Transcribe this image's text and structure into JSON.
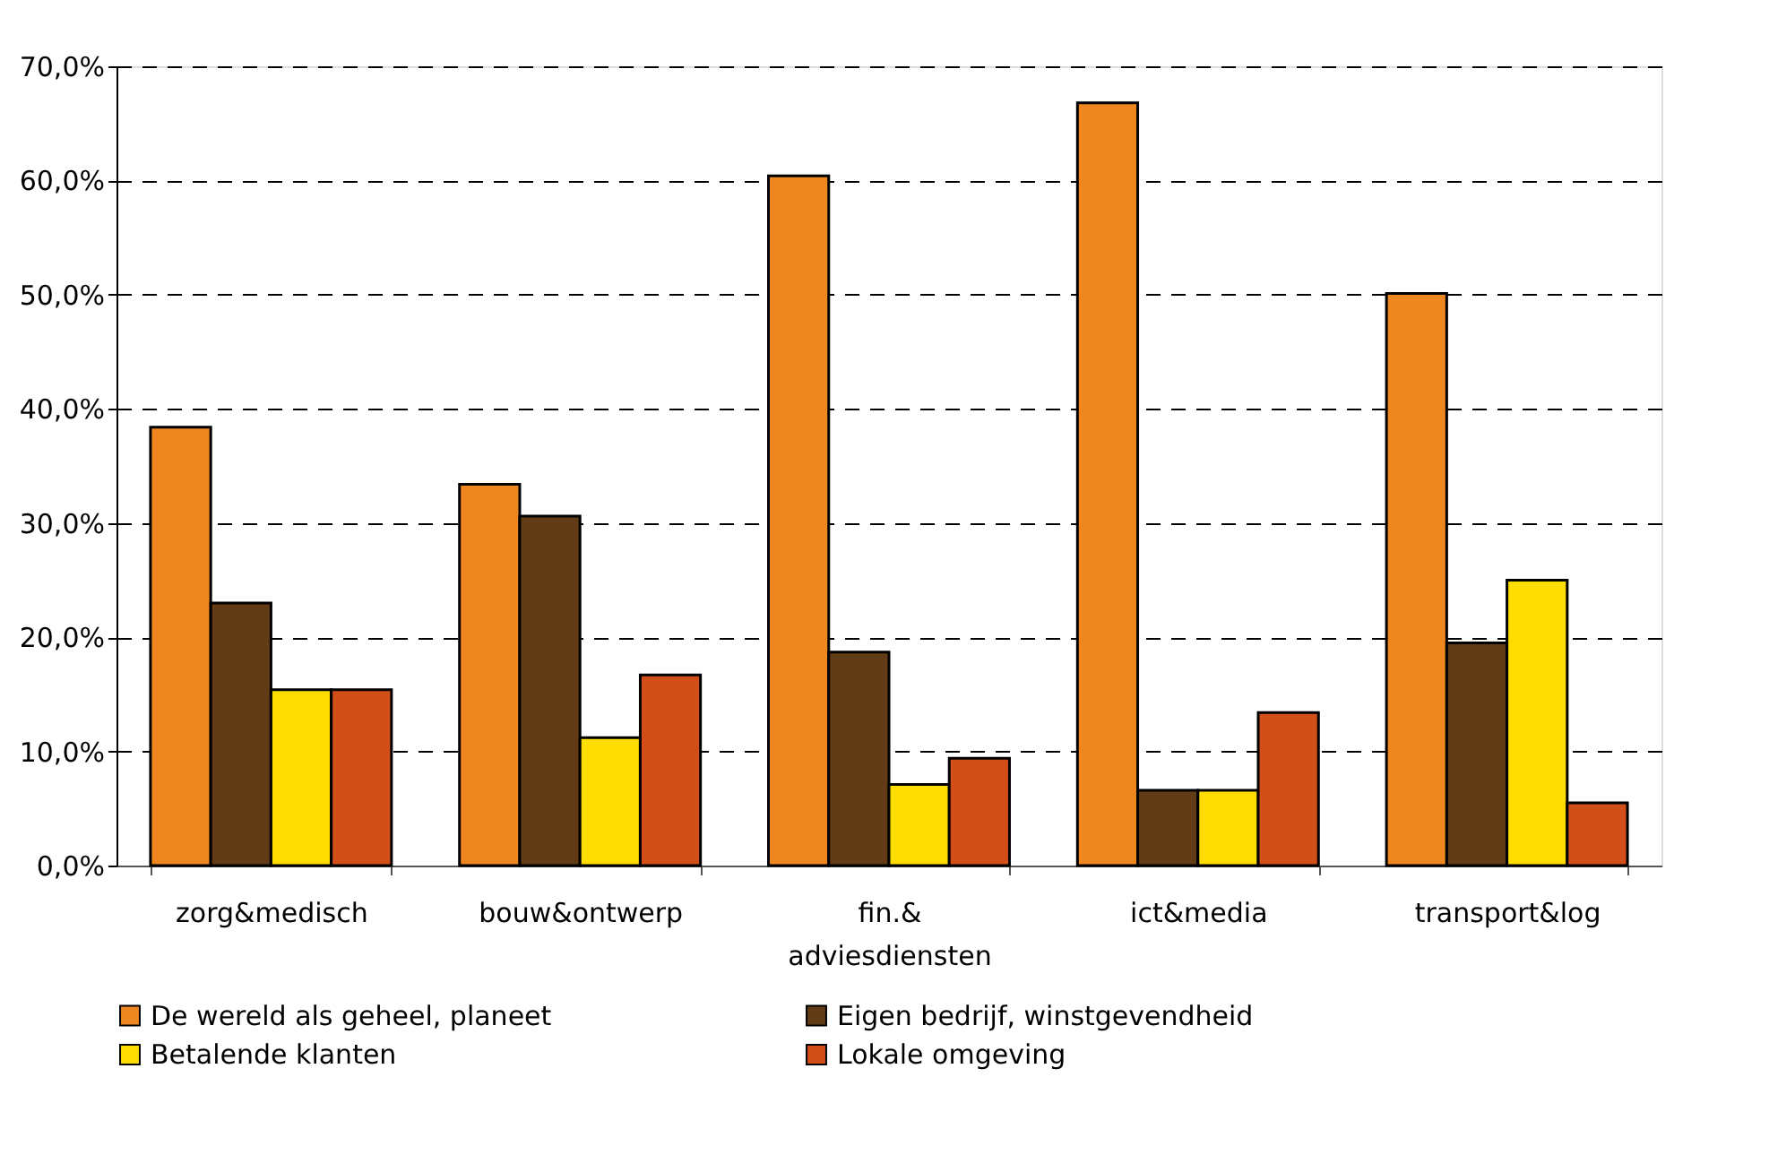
{
  "chart_data": {
    "type": "bar",
    "categories": [
      "zorg&medisch",
      "bouw&ontwerp",
      "fin.& adviesdiensten",
      "ict&media",
      "transport&log"
    ],
    "series": [
      {
        "name": "De wereld als geheel, planeet",
        "color": "#ee871f",
        "values": [
          38.4,
          33.4,
          60.4,
          66.8,
          50.1
        ]
      },
      {
        "name": "Eigen bedrijf, winstgevendheid",
        "color": "#623c16",
        "values": [
          23.0,
          30.6,
          18.7,
          6.6,
          19.5
        ]
      },
      {
        "name": "Betalende klanten",
        "color": "#ffdd00",
        "values": [
          15.4,
          11.2,
          7.1,
          6.6,
          25.0
        ]
      },
      {
        "name": "Lokale omgeving",
        "color": "#d34f1a",
        "values": [
          15.4,
          16.7,
          9.4,
          13.4,
          5.5
        ]
      }
    ],
    "ylim": [
      0,
      70
    ],
    "yticks": [
      {
        "value": 0,
        "label": "0,0%"
      },
      {
        "value": 10,
        "label": "10,0%"
      },
      {
        "value": 20,
        "label": "20,0%"
      },
      {
        "value": 30,
        "label": "30,0%"
      },
      {
        "value": 40,
        "label": "40,0%"
      },
      {
        "value": 50,
        "label": "50,0%"
      },
      {
        "value": 60,
        "label": "60,0%"
      },
      {
        "value": 70,
        "label": "70,0%"
      }
    ],
    "grid": "y",
    "legend": "bottom"
  }
}
